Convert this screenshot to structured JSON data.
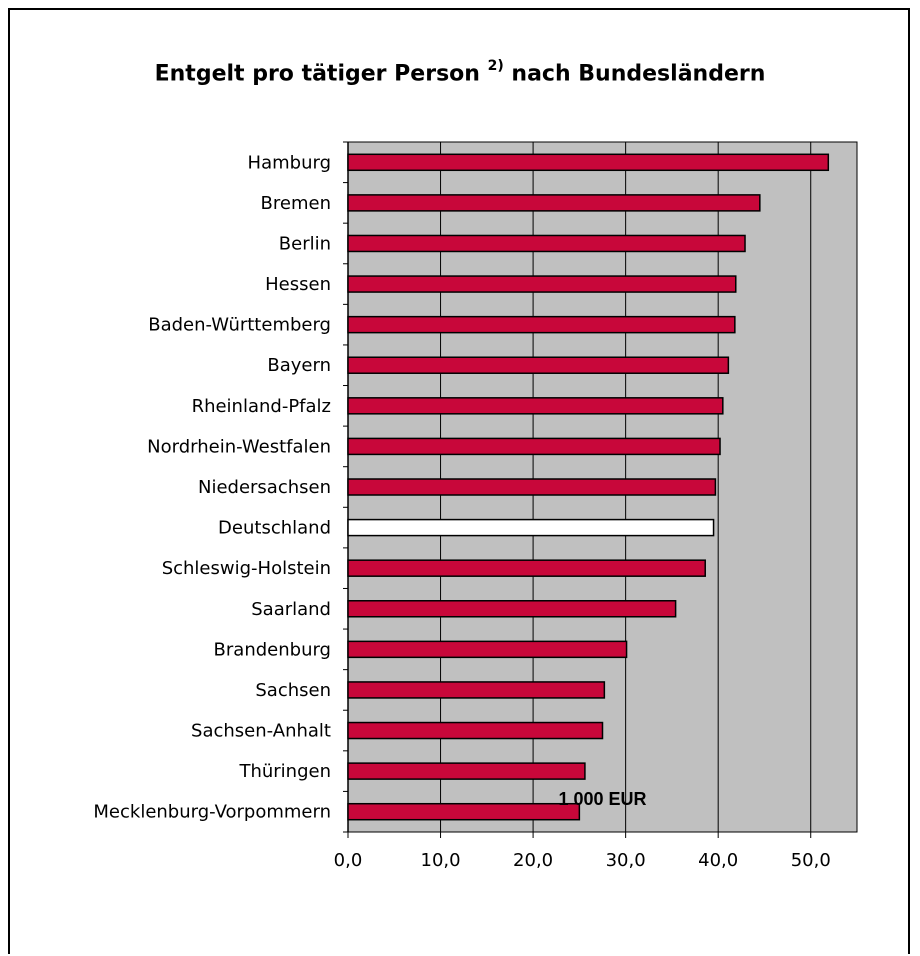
{
  "chart_data": {
    "type": "bar",
    "orientation": "horizontal",
    "title": "Entgelt pro tätiger Person",
    "title_footnote": "2)",
    "title_suffix": "nach Bundesländern",
    "xlabel": "1 000 EUR",
    "ylabel": "",
    "xlim": [
      0,
      55
    ],
    "ticks": [
      0,
      10,
      20,
      30,
      40,
      50
    ],
    "tick_labels": [
      "0,0",
      "10,0",
      "20,0",
      "30,0",
      "40,0",
      "50,0"
    ],
    "grid": true,
    "legend": "none",
    "categories": [
      "Hamburg",
      "Bremen",
      "Berlin",
      "Hessen",
      "Baden-Württemberg",
      "Bayern",
      "Rheinland-Pfalz",
      "Nordrhein-Westfalen",
      "Niedersachsen",
      "Deutschland",
      "Schleswig-Holstein",
      "Saarland",
      "Brandenburg",
      "Sachsen",
      "Sachsen-Anhalt",
      "Thüringen",
      "Mecklenburg-Vorpommern"
    ],
    "values": [
      51.9,
      44.5,
      42.9,
      41.9,
      41.8,
      41.1,
      40.5,
      40.2,
      39.7,
      39.5,
      38.6,
      35.4,
      30.1,
      27.7,
      27.5,
      25.6,
      25.0
    ],
    "highlight_category": "Deutschland",
    "colors": {
      "bar": "#c8073a",
      "highlight_bar": "#ffffff",
      "plot_background": "#c0c0c0",
      "gridline": "#000000"
    }
  }
}
